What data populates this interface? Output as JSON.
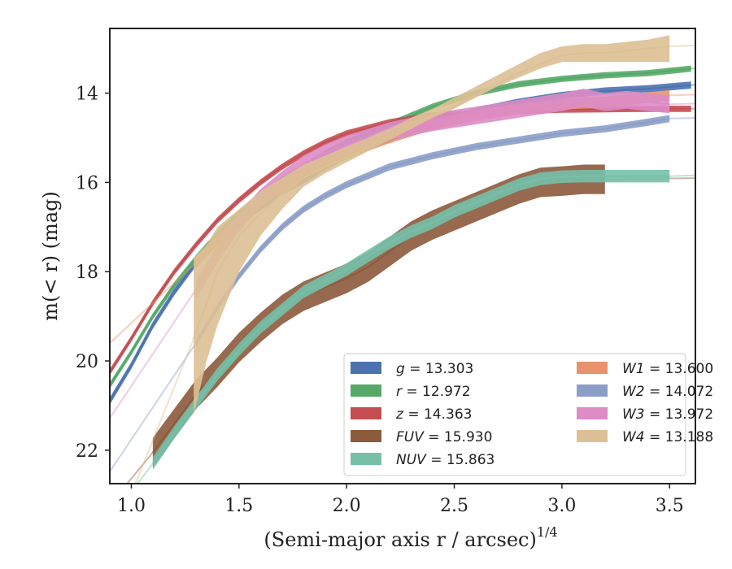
{
  "chart_data": {
    "type": "line",
    "title": "",
    "xlabel_base": "(Semi-major axis r / arcsec)",
    "xlabel_sup": "1/4",
    "ylabel": "m(< r) (mag)",
    "xlim": [
      0.9,
      3.62
    ],
    "ylim": [
      22.75,
      12.55
    ],
    "y_inverted": true,
    "xticks": [
      1.0,
      1.5,
      2.0,
      2.5,
      3.0,
      3.5
    ],
    "xtick_labels": [
      "1.0",
      "1.5",
      "2.0",
      "2.5",
      "3.0",
      "3.5"
    ],
    "yticks": [
      14,
      16,
      18,
      20,
      22
    ],
    "ytick_labels": [
      "14",
      "16",
      "18",
      "20",
      "22"
    ],
    "grid": false,
    "legend_position": "lower-right",
    "legend_columns": 2,
    "series": [
      {
        "name": "g",
        "legend_value": "13.303",
        "color": "#4c72b0",
        "x": [
          0.9,
          1.0,
          1.1,
          1.2,
          1.3,
          1.4,
          1.5,
          1.6,
          1.7,
          1.8,
          1.9,
          2.0,
          2.2,
          2.4,
          2.6,
          2.8,
          3.0,
          3.2,
          3.4,
          3.6
        ],
        "y": [
          20.9,
          20.1,
          19.2,
          18.45,
          17.8,
          17.3,
          16.9,
          16.55,
          16.2,
          15.95,
          15.65,
          15.4,
          15.0,
          14.7,
          14.4,
          14.2,
          14.05,
          13.95,
          13.9,
          13.82
        ],
        "band": 0.08,
        "faint_from": 3.5
      },
      {
        "name": "r",
        "legend_value": "12.972",
        "color": "#55a868",
        "x": [
          0.9,
          1.0,
          1.1,
          1.2,
          1.3,
          1.4,
          1.5,
          1.6,
          1.7,
          1.8,
          1.9,
          2.0,
          2.2,
          2.4,
          2.6,
          2.8,
          3.0,
          3.2,
          3.4,
          3.6
        ],
        "y": [
          20.55,
          19.8,
          19.0,
          18.3,
          17.7,
          17.15,
          16.7,
          16.3,
          15.95,
          15.65,
          15.35,
          15.1,
          14.7,
          14.3,
          14.0,
          13.8,
          13.68,
          13.6,
          13.55,
          13.45
        ],
        "band": 0.07,
        "faint_from": 3.5
      },
      {
        "name": "z",
        "legend_value": "14.363",
        "color": "#c44e52",
        "x": [
          0.9,
          1.0,
          1.1,
          1.2,
          1.3,
          1.4,
          1.5,
          1.6,
          1.7,
          1.8,
          1.9,
          2.0,
          2.2,
          2.4,
          2.6,
          2.8,
          3.0,
          3.2,
          3.4,
          3.6
        ],
        "y": [
          20.25,
          19.5,
          18.7,
          18.0,
          17.4,
          16.85,
          16.4,
          16.0,
          15.65,
          15.35,
          15.1,
          14.9,
          14.65,
          14.5,
          14.45,
          14.4,
          14.37,
          14.36,
          14.35,
          14.35
        ],
        "band": 0.07,
        "faint_from": 3.5
      },
      {
        "name": "FUV",
        "legend_value": "15.930",
        "color": "#8c5a3c",
        "x": [
          1.1,
          1.2,
          1.3,
          1.4,
          1.5,
          1.6,
          1.7,
          1.8,
          1.9,
          2.0,
          2.1,
          2.2,
          2.3,
          2.4,
          2.5,
          2.6,
          2.7,
          2.8,
          2.9,
          3.0,
          3.1,
          3.2
        ],
        "y": [
          22.05,
          21.4,
          20.75,
          20.25,
          19.7,
          19.25,
          18.85,
          18.55,
          18.35,
          18.15,
          17.9,
          17.55,
          17.2,
          16.95,
          16.75,
          16.55,
          16.35,
          16.15,
          16.0,
          15.97,
          15.93,
          15.93
        ],
        "band": 0.33,
        "faint_from": 3.2
      },
      {
        "name": "NUV",
        "legend_value": "15.863",
        "color": "#76c0a8",
        "x": [
          1.1,
          1.2,
          1.3,
          1.4,
          1.5,
          1.6,
          1.7,
          1.8,
          1.9,
          2.0,
          2.1,
          2.2,
          2.3,
          2.4,
          2.5,
          2.6,
          2.7,
          2.8,
          2.9,
          3.0,
          3.1,
          3.2,
          3.3,
          3.4,
          3.5
        ],
        "y": [
          22.3,
          21.6,
          20.95,
          20.3,
          19.75,
          19.25,
          18.85,
          18.45,
          18.2,
          17.95,
          17.65,
          17.35,
          17.1,
          16.9,
          16.65,
          16.45,
          16.25,
          16.05,
          15.92,
          15.87,
          15.86,
          15.86,
          15.86,
          15.86,
          15.86
        ],
        "band": 0.14,
        "faint_from": 3.5
      },
      {
        "name": "W1",
        "legend_value": "13.600",
        "color": "#e8926e",
        "x": [
          1.3,
          1.4,
          1.5,
          1.6,
          1.7,
          1.8,
          1.9,
          2.0,
          2.2,
          2.4,
          2.6,
          2.8,
          3.0,
          3.2,
          3.4,
          3.5
        ],
        "y": [
          17.8,
          17.3,
          16.85,
          16.45,
          16.1,
          15.8,
          15.55,
          15.35,
          15.0,
          14.7,
          14.5,
          14.35,
          14.25,
          14.2,
          14.1,
          14.05
        ],
        "band": 0.12,
        "faint_from": 3.5
      },
      {
        "name": "W2",
        "legend_value": "14.072",
        "color": "#8c9dc8",
        "x": [
          1.3,
          1.4,
          1.5,
          1.6,
          1.7,
          1.8,
          1.9,
          2.0,
          2.2,
          2.4,
          2.6,
          2.8,
          3.0,
          3.2,
          3.4,
          3.5
        ],
        "y": [
          19.6,
          18.8,
          18.1,
          17.5,
          17.0,
          16.6,
          16.3,
          16.05,
          15.65,
          15.4,
          15.2,
          15.05,
          14.9,
          14.8,
          14.65,
          14.57
        ],
        "band": 0.08,
        "faint_from": 3.5
      },
      {
        "name": "W3",
        "legend_value": "13.972",
        "color": "#dd8cc6",
        "x": [
          1.3,
          1.4,
          1.5,
          1.6,
          1.7,
          1.8,
          1.9,
          2.0,
          2.2,
          2.4,
          2.6,
          2.8,
          3.0,
          3.1,
          3.2,
          3.3,
          3.4,
          3.5
        ],
        "y": [
          18.4,
          17.6,
          16.9,
          16.35,
          15.95,
          15.6,
          15.35,
          15.15,
          14.85,
          14.65,
          14.5,
          14.35,
          14.2,
          14.1,
          14.2,
          14.15,
          14.2,
          14.25
        ],
        "band": 0.2,
        "faint_from": 3.5
      },
      {
        "name": "W4",
        "legend_value": "13.188",
        "color": "#ddc095",
        "x": [
          1.29,
          1.35,
          1.4,
          1.5,
          1.6,
          1.7,
          1.8,
          1.9,
          2.0,
          2.1,
          2.2,
          2.3,
          2.4,
          2.5,
          2.6,
          2.7,
          2.8,
          2.9,
          3.0,
          3.1,
          3.2,
          3.3,
          3.4,
          3.5
        ],
        "y": [
          19.5,
          18.7,
          18.0,
          17.2,
          16.7,
          16.25,
          15.9,
          15.65,
          15.45,
          15.2,
          14.95,
          14.7,
          14.5,
          14.3,
          14.05,
          13.8,
          13.55,
          13.35,
          13.15,
          13.1,
          13.1,
          13.05,
          13.0,
          12.95
        ],
        "band_lo": [
          21.2,
          20.0,
          19.2,
          18.0,
          17.2,
          16.6,
          16.1,
          15.8,
          15.55,
          15.3,
          15.05,
          14.8,
          14.55,
          14.35,
          14.1,
          13.85,
          13.65,
          13.45,
          13.3,
          13.3,
          13.3,
          13.3,
          13.3,
          13.3
        ],
        "band_hi": [
          17.7,
          17.4,
          17.0,
          16.6,
          16.2,
          15.9,
          15.6,
          15.4,
          15.2,
          15.0,
          14.8,
          14.55,
          14.35,
          14.1,
          13.85,
          13.6,
          13.35,
          13.1,
          12.95,
          12.9,
          12.9,
          12.85,
          12.8,
          12.7
        ],
        "faint_from": 3.54
      }
    ]
  }
}
